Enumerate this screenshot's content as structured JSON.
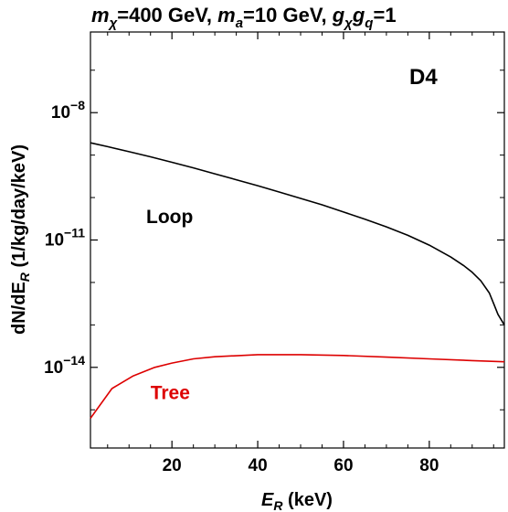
{
  "chart_data": {
    "type": "line",
    "title": {
      "parts": [
        {
          "text": "m",
          "style": "italic"
        },
        {
          "text": "χ",
          "style": "italic-sub"
        },
        {
          "text": "=400 GeV, ",
          "style": "normal"
        },
        {
          "text": "m",
          "style": "italic"
        },
        {
          "text": "a",
          "style": "italic-sub"
        },
        {
          "text": "=10 GeV, ",
          "style": "normal"
        },
        {
          "text": "g",
          "style": "italic"
        },
        {
          "text": "χ",
          "style": "italic-sub"
        },
        {
          "text": "g",
          "style": "italic"
        },
        {
          "text": "q",
          "style": "italic-sub"
        },
        {
          "text": "=1",
          "style": "normal"
        }
      ]
    },
    "panel_label": "D4",
    "xlabel": {
      "main": "E",
      "sub": "R",
      "unit": " (keV)"
    },
    "ylabel": {
      "main": "dN/dE",
      "sub": "R",
      "unit": " (1/kg/day/keV)"
    },
    "xlim": [
      1,
      97.5
    ],
    "ylim_log10": [
      -15.9,
      -6.1
    ],
    "yscale": "log",
    "x_ticks": [
      20,
      40,
      60,
      80
    ],
    "y_ticks": [
      {
        "base": "10",
        "exp": "−8",
        "value_log10": -8
      },
      {
        "base": "10",
        "exp": "−11",
        "value_log10": -11
      },
      {
        "base": "10",
        "exp": "−14",
        "value_log10": -14
      }
    ],
    "grid": false,
    "series": [
      {
        "name": "Loop",
        "color": "#000000",
        "x": [
          1,
          5,
          10,
          15,
          20,
          25,
          30,
          35,
          40,
          45,
          50,
          55,
          60,
          65,
          70,
          75,
          80,
          85,
          88,
          90,
          92,
          94,
          95,
          96,
          97.5
        ],
        "y_log10": [
          -8.71,
          -8.8,
          -8.92,
          -9.04,
          -9.17,
          -9.3,
          -9.44,
          -9.58,
          -9.72,
          -9.87,
          -10.02,
          -10.17,
          -10.34,
          -10.51,
          -10.69,
          -10.89,
          -11.12,
          -11.4,
          -11.6,
          -11.76,
          -11.96,
          -12.25,
          -12.5,
          -12.75,
          -13.0
        ]
      },
      {
        "name": "Tree",
        "color": "#dd0000",
        "x": [
          1,
          6,
          11,
          16,
          20,
          25,
          30,
          40,
          50,
          60,
          70,
          80,
          90,
          97.5
        ],
        "y_log10": [
          -15.2,
          -14.5,
          -14.2,
          -14.0,
          -13.9,
          -13.8,
          -13.75,
          -13.7,
          -13.7,
          -13.72,
          -13.76,
          -13.8,
          -13.84,
          -13.87
        ]
      }
    ]
  }
}
